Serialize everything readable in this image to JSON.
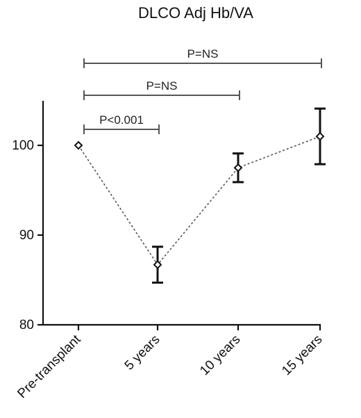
{
  "chart_data": {
    "type": "scatter",
    "title": "DLCO Adj Hb/VA",
    "xlabel": "",
    "ylabel": "",
    "categories": [
      "Pre-transplant",
      "5 years",
      "10 years",
      "15 years"
    ],
    "y_ticks": [
      "80",
      "90",
      "100"
    ],
    "ylim": [
      80,
      105
    ],
    "grid": false,
    "series": [
      {
        "values": [
          100,
          86.7,
          97.5,
          101
        ],
        "error_low": [
          100,
          84.7,
          95.9,
          97.9
        ],
        "error_high": [
          100,
          88.7,
          99.1,
          104.1
        ]
      }
    ],
    "comparisons": [
      {
        "from": 0,
        "to": 1,
        "label": "P<0.001"
      },
      {
        "from": 0,
        "to": 2,
        "label": "P=NS"
      },
      {
        "from": 0,
        "to": 3,
        "label": "P=NS"
      }
    ]
  }
}
